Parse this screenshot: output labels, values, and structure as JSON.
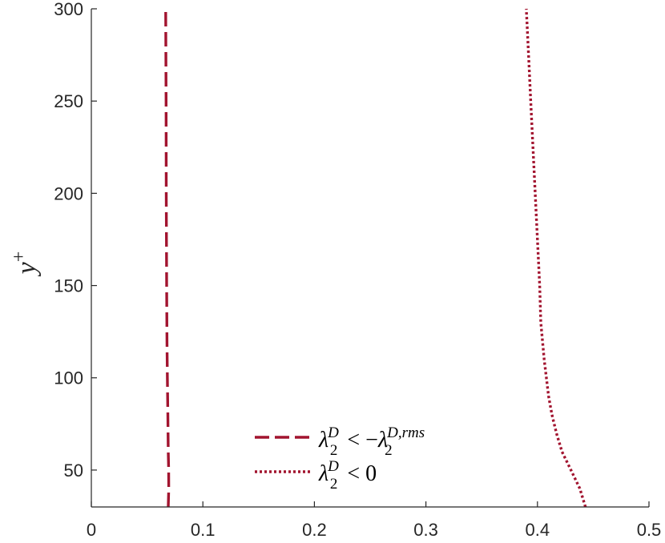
{
  "chart_data": {
    "type": "line",
    "xlabel": "",
    "ylabel": "y+",
    "xlim": [
      0,
      0.5
    ],
    "ylim": [
      30,
      300
    ],
    "xticks": [
      0,
      0.1,
      0.2,
      0.3,
      0.4,
      0.5
    ],
    "yticks": [
      50,
      100,
      150,
      200,
      250,
      300
    ],
    "xtick_labels": [
      "0",
      "0.1",
      "0.2",
      "0.3",
      "0.4",
      "0.5"
    ],
    "ytick_labels": [
      "50",
      "100",
      "150",
      "200",
      "250",
      "300"
    ],
    "grid": false,
    "legend_position": "bottom-center",
    "series": [
      {
        "name": "λ2D < −λ2D,rms",
        "style": "dashed",
        "color": "#A2142F",
        "points": [
          [
            0.069,
            30
          ],
          [
            0.0694,
            40
          ],
          [
            0.0693,
            50
          ],
          [
            0.069,
            60
          ],
          [
            0.0686,
            80
          ],
          [
            0.0682,
            100
          ],
          [
            0.0678,
            120
          ],
          [
            0.0675,
            150
          ],
          [
            0.0672,
            200
          ],
          [
            0.067,
            250
          ],
          [
            0.0668,
            280
          ],
          [
            0.0667,
            300
          ]
        ]
      },
      {
        "name": "λ2D < 0",
        "style": "dotted",
        "color": "#A2142F",
        "points": [
          [
            0.443,
            30
          ],
          [
            0.438,
            40
          ],
          [
            0.43,
            50
          ],
          [
            0.422,
            60
          ],
          [
            0.417,
            70
          ],
          [
            0.413,
            80
          ],
          [
            0.41,
            90
          ],
          [
            0.406,
            110
          ],
          [
            0.403,
            130
          ],
          [
            0.402,
            150
          ],
          [
            0.4,
            175
          ],
          [
            0.398,
            200
          ],
          [
            0.396,
            225
          ],
          [
            0.394,
            250
          ],
          [
            0.392,
            275
          ],
          [
            0.39,
            300
          ]
        ]
      }
    ]
  }
}
